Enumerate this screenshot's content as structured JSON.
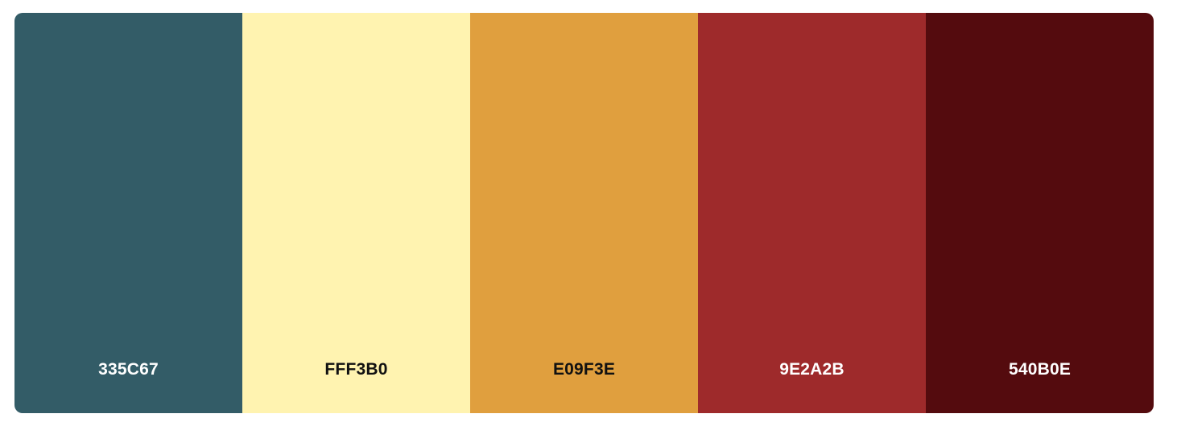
{
  "palette": {
    "swatches": [
      {
        "hex": "335C67",
        "color": "#335C67",
        "text_color": "#ffffff"
      },
      {
        "hex": "FFF3B0",
        "color": "#FFF3B0",
        "text_color": "#111111"
      },
      {
        "hex": "E09F3E",
        "color": "#E09F3E",
        "text_color": "#111111"
      },
      {
        "hex": "9E2A2B",
        "color": "#9E2A2B",
        "text_color": "#ffffff"
      },
      {
        "hex": "540B0E",
        "color": "#540B0E",
        "text_color": "#ffffff"
      }
    ]
  }
}
